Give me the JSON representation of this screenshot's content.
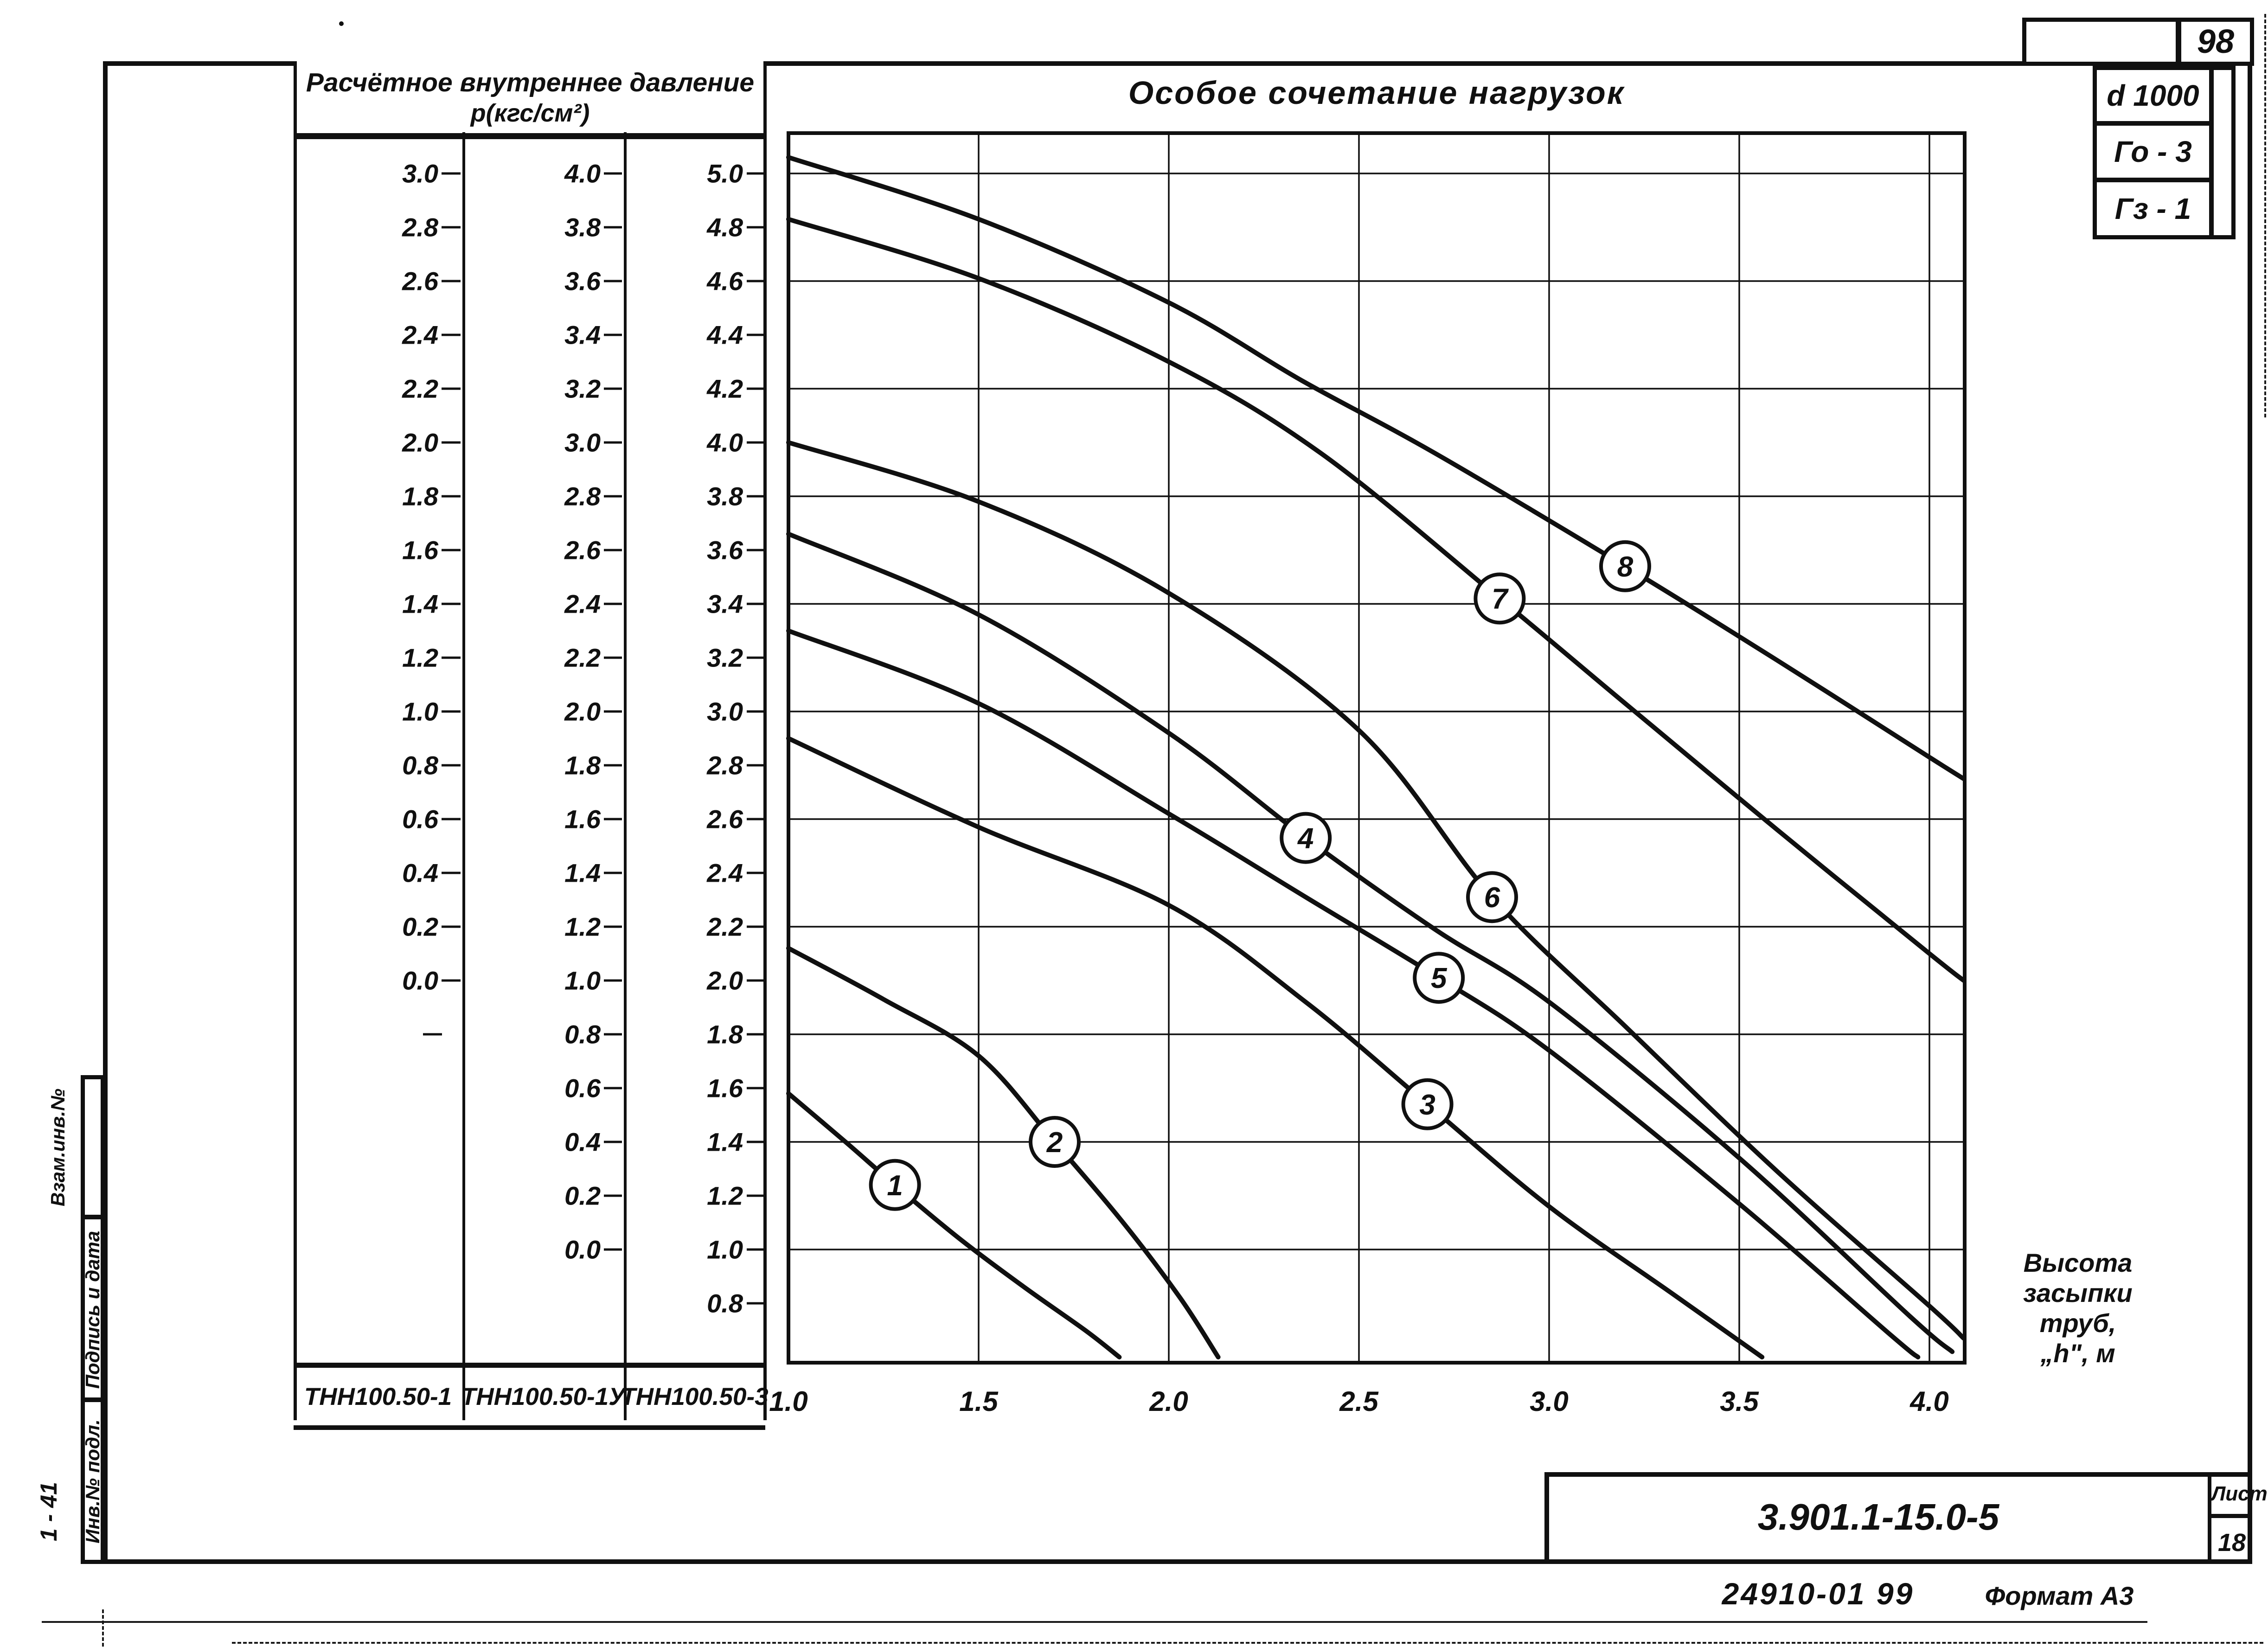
{
  "page": {
    "number": "98",
    "series_code": "3.901.1-15.0-5",
    "sheet_label": "Лист",
    "sheet_number": "18",
    "doc_code": "24910-01 99",
    "format_note": "Формат А3",
    "corner_mark": "1 - 41",
    "stray_dot": "."
  },
  "stamp_boxes": {
    "diameter": "d 1000",
    "row2": "Го - 3",
    "row3": "Гз - 1"
  },
  "sidebar": {
    "items": [
      {
        "label": "Взам.инв.№"
      },
      {
        "label": "Подпись и дата"
      },
      {
        "label": "Инв.№ подл."
      }
    ]
  },
  "pressure_table": {
    "header_line1": "Расчётное внутреннее давление",
    "header_line2": "р(кгс/см²)",
    "columns": [
      {
        "footer": "ТНН100.50-1",
        "values": [
          "3.0",
          "2.8",
          "2.6",
          "2.4",
          "2.2",
          "2.0",
          "1.8",
          "1.6",
          "1.4",
          "1.2",
          "1.0",
          "0.8",
          "0.6",
          "0.4",
          "0.2",
          "0.0"
        ]
      },
      {
        "footer": "ТНН100.50-1У",
        "values": [
          "4.0",
          "3.8",
          "3.6",
          "3.4",
          "3.2",
          "3.0",
          "2.8",
          "2.6",
          "2.4",
          "2.2",
          "2.0",
          "1.8",
          "1.6",
          "1.4",
          "1.2",
          "1.0",
          "0.8",
          "0.6",
          "0.4",
          "0.2",
          "0.0"
        ]
      },
      {
        "footer": "ТНН100.50-3",
        "values": [
          "5.0",
          "4.8",
          "4.6",
          "4.4",
          "4.2",
          "4.0",
          "3.8",
          "3.6",
          "3.4",
          "3.2",
          "3.0",
          "2.8",
          "2.6",
          "2.4",
          "2.2",
          "2.0",
          "1.8",
          "1.6",
          "1.4",
          "1.2",
          "1.0",
          "0.8"
        ]
      }
    ]
  },
  "chart_data": {
    "type": "line",
    "title": "Особое    сочетание    нагрузок",
    "xlabel_lines": [
      "Высота",
      "засыпки",
      "труб,",
      "„h\", м"
    ],
    "ylabel": "Расчётное внутреннее давление р(кгс/см²)",
    "x_ticks": [
      "1.0",
      "1.5",
      "2.0",
      "2.5",
      "3.0",
      "3.5",
      "4.0"
    ],
    "x_tick_values": [
      1.0,
      1.5,
      2.0,
      2.5,
      3.0,
      3.5,
      4.0
    ],
    "x_range": [
      1.0,
      4.093
    ],
    "y_range": [
      0.579,
      5.15
    ],
    "y_gridlines": [
      5.0,
      4.6,
      4.2,
      3.8,
      3.4,
      3.0,
      2.6,
      2.2,
      1.8,
      1.4,
      1.0
    ],
    "grid": true,
    "series": [
      {
        "name": "1",
        "marker": [
          1.28,
          1.24
        ],
        "points": [
          [
            1.0,
            1.58
          ],
          [
            1.15,
            1.4
          ],
          [
            1.28,
            1.24
          ],
          [
            1.45,
            1.04
          ],
          [
            1.62,
            0.86
          ],
          [
            1.78,
            0.7
          ],
          [
            1.87,
            0.6
          ]
        ]
      },
      {
        "name": "2",
        "marker": [
          1.7,
          1.4
        ],
        "points": [
          [
            1.0,
            2.12
          ],
          [
            1.25,
            1.93
          ],
          [
            1.5,
            1.72
          ],
          [
            1.7,
            1.4
          ],
          [
            1.88,
            1.1
          ],
          [
            2.03,
            0.82
          ],
          [
            2.13,
            0.6
          ]
        ]
      },
      {
        "name": "3",
        "marker": [
          2.68,
          1.54
        ],
        "points": [
          [
            1.0,
            2.9
          ],
          [
            1.5,
            2.57
          ],
          [
            2.0,
            2.28
          ],
          [
            2.36,
            1.92
          ],
          [
            2.68,
            1.54
          ],
          [
            3.0,
            1.16
          ],
          [
            3.32,
            0.84
          ],
          [
            3.56,
            0.6
          ]
        ]
      },
      {
        "name": "4",
        "marker": [
          2.36,
          2.53
        ],
        "points": [
          [
            1.0,
            3.66
          ],
          [
            1.5,
            3.36
          ],
          [
            2.0,
            2.92
          ],
          [
            2.36,
            2.53
          ],
          [
            2.7,
            2.19
          ],
          [
            3.0,
            1.92
          ],
          [
            3.5,
            1.34
          ],
          [
            3.95,
            0.75
          ],
          [
            4.06,
            0.62
          ]
        ]
      },
      {
        "name": "5",
        "marker": [
          2.71,
          2.01
        ],
        "points": [
          [
            1.0,
            3.3
          ],
          [
            1.5,
            3.03
          ],
          [
            2.0,
            2.62
          ],
          [
            2.36,
            2.31
          ],
          [
            2.71,
            2.01
          ],
          [
            3.0,
            1.74
          ],
          [
            3.5,
            1.17
          ],
          [
            3.9,
            0.68
          ],
          [
            3.97,
            0.6
          ]
        ]
      },
      {
        "name": "6",
        "marker": [
          2.85,
          2.31
        ],
        "points": [
          [
            1.0,
            4.0
          ],
          [
            1.5,
            3.78
          ],
          [
            2.0,
            3.44
          ],
          [
            2.5,
            2.93
          ],
          [
            2.85,
            2.31
          ],
          [
            3.2,
            1.83
          ],
          [
            3.6,
            1.29
          ],
          [
            4.0,
            0.79
          ],
          [
            4.09,
            0.67
          ]
        ]
      },
      {
        "name": "7",
        "marker": [
          2.87,
          3.42
        ],
        "points": [
          [
            1.0,
            4.83
          ],
          [
            1.5,
            4.61
          ],
          [
            2.0,
            4.3
          ],
          [
            2.4,
            3.96
          ],
          [
            2.87,
            3.42
          ],
          [
            3.2,
            3.03
          ],
          [
            3.6,
            2.56
          ],
          [
            4.0,
            2.1
          ],
          [
            4.09,
            2.0
          ]
        ]
      },
      {
        "name": "8",
        "marker": [
          3.2,
          3.54
        ],
        "points": [
          [
            1.0,
            5.06
          ],
          [
            1.5,
            4.83
          ],
          [
            2.0,
            4.52
          ],
          [
            2.35,
            4.23
          ],
          [
            2.7,
            3.96
          ],
          [
            3.2,
            3.54
          ],
          [
            3.6,
            3.19
          ],
          [
            4.0,
            2.83
          ],
          [
            4.09,
            2.75
          ]
        ]
      }
    ]
  }
}
